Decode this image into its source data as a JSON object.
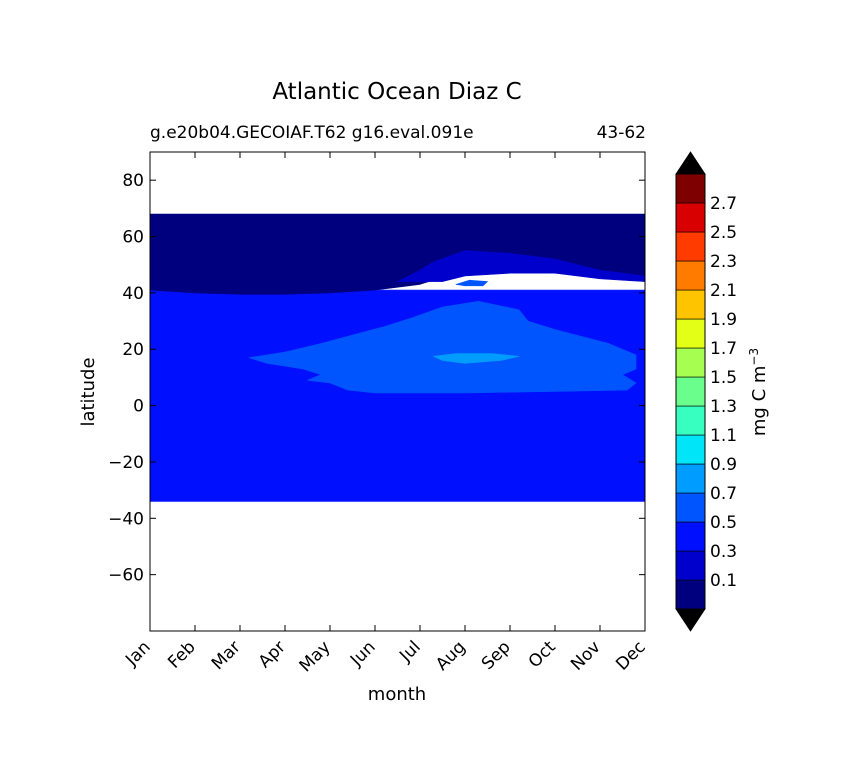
{
  "chart_data": {
    "type": "heatmap",
    "title": "Atlantic Ocean Diaz C",
    "subtitle_left": "g.e20b04.GECOIAF.T62 g16.eval.091e",
    "subtitle_right": "43-62",
    "xlabel": "month",
    "ylabel": "latitude",
    "x_ticks": [
      "Jan",
      "Feb",
      "Mar",
      "Apr",
      "May",
      "Jun",
      "Jul",
      "Aug",
      "Sep",
      "Oct",
      "Nov",
      "Dec"
    ],
    "x_range": [
      0,
      11
    ],
    "ylim": [
      -80,
      90
    ],
    "y_ticks": [
      80,
      60,
      40,
      20,
      0,
      -20,
      -40,
      -60
    ],
    "y_tick_labels": [
      "80",
      "60",
      "40",
      "20",
      "0",
      "−20",
      "−40",
      "−60"
    ],
    "data_extent_lat": [
      -34,
      68
    ],
    "colorbar": {
      "label": "mg C m",
      "label_exponent": "−3",
      "levels": [
        -0.1,
        0.1,
        0.3,
        0.5,
        0.7,
        0.9,
        1.1,
        1.3,
        1.5,
        1.7,
        1.9,
        2.1,
        2.3,
        2.5,
        2.7,
        2.9
      ],
      "tick_labels": [
        "0.1",
        "0.3",
        "0.5",
        "0.7",
        "0.9",
        "1.1",
        "1.3",
        "1.5",
        "1.7",
        "1.9",
        "2.1",
        "2.3",
        "2.5",
        "2.7"
      ],
      "colors": [
        "#00007f",
        "#0000cc",
        "#0010ff",
        "#0055ff",
        "#009cff",
        "#00e5f7",
        "#36ffc0",
        "#6aff8c",
        "#a6ff50",
        "#e2ff15",
        "#ffc400",
        "#ff7b00",
        "#ff3b00",
        "#d80000",
        "#7f0000"
      ],
      "extend_low_color": "#000000",
      "extend_high_color": "#000000"
    },
    "regions": [
      {
        "level": "0.3-0.5",
        "color": "#0010ff",
        "lat_range": [
          -34,
          41
        ],
        "note": "background band"
      },
      {
        "level": "-0.1-0.1",
        "color": "#00007f",
        "boundary": [
          [
            0,
            41
          ],
          [
            1,
            40
          ],
          [
            2,
            39.5
          ],
          [
            3,
            39.5
          ],
          [
            4,
            40
          ],
          [
            5,
            41
          ],
          [
            6,
            43
          ],
          [
            7,
            48
          ],
          [
            8,
            52
          ],
          [
            9,
            50
          ],
          [
            10,
            47
          ],
          [
            11,
            44
          ]
        ]
      },
      {
        "level": "0.1-0.3",
        "color": "#0000cc",
        "polygon": [
          [
            5.5,
            44
          ],
          [
            6,
            48
          ],
          [
            6.3,
            51
          ],
          [
            7,
            55
          ],
          [
            8,
            54
          ],
          [
            9,
            52
          ],
          [
            10,
            48
          ],
          [
            11,
            46
          ],
          [
            11,
            44
          ],
          [
            10,
            45
          ],
          [
            9,
            47
          ],
          [
            8,
            47
          ],
          [
            7,
            46
          ],
          [
            6.5,
            44
          ]
        ]
      },
      {
        "level": "0.5-0.7",
        "color": "#0055ff",
        "polygon": [
          [
            2.2,
            17
          ],
          [
            3.0,
            19
          ],
          [
            3.8,
            22
          ],
          [
            4.5,
            25
          ],
          [
            5.2,
            28
          ],
          [
            5.8,
            31
          ],
          [
            6.5,
            35
          ],
          [
            7.3,
            37
          ],
          [
            8.2,
            34
          ],
          [
            8.4,
            30
          ],
          [
            9.0,
            27
          ],
          [
            10.2,
            22
          ],
          [
            10.8,
            18
          ],
          [
            10.8,
            13
          ],
          [
            10.5,
            11
          ],
          [
            10.8,
            8
          ],
          [
            10.6,
            5.5
          ],
          [
            9.0,
            5
          ],
          [
            7.0,
            4.5
          ],
          [
            5.0,
            4.5
          ],
          [
            4.4,
            5.5
          ],
          [
            4.0,
            8
          ],
          [
            3.5,
            9
          ],
          [
            3.8,
            11
          ],
          [
            3.4,
            13
          ],
          [
            2.6,
            15
          ]
        ]
      },
      {
        "level": "0.5-0.7",
        "color": "#0055ff",
        "polygon": [
          [
            6.8,
            43
          ],
          [
            7.1,
            44.5
          ],
          [
            7.5,
            44
          ],
          [
            7.4,
            42.5
          ],
          [
            7.0,
            42.5
          ]
        ]
      },
      {
        "level": "0.7-0.9",
        "color": "#009cff",
        "polygon": [
          [
            6.3,
            17.5
          ],
          [
            6.8,
            18.5
          ],
          [
            7.6,
            18.5
          ],
          [
            8.2,
            17.5
          ],
          [
            7.8,
            16
          ],
          [
            7.0,
            15
          ],
          [
            6.5,
            16
          ]
        ]
      }
    ]
  }
}
